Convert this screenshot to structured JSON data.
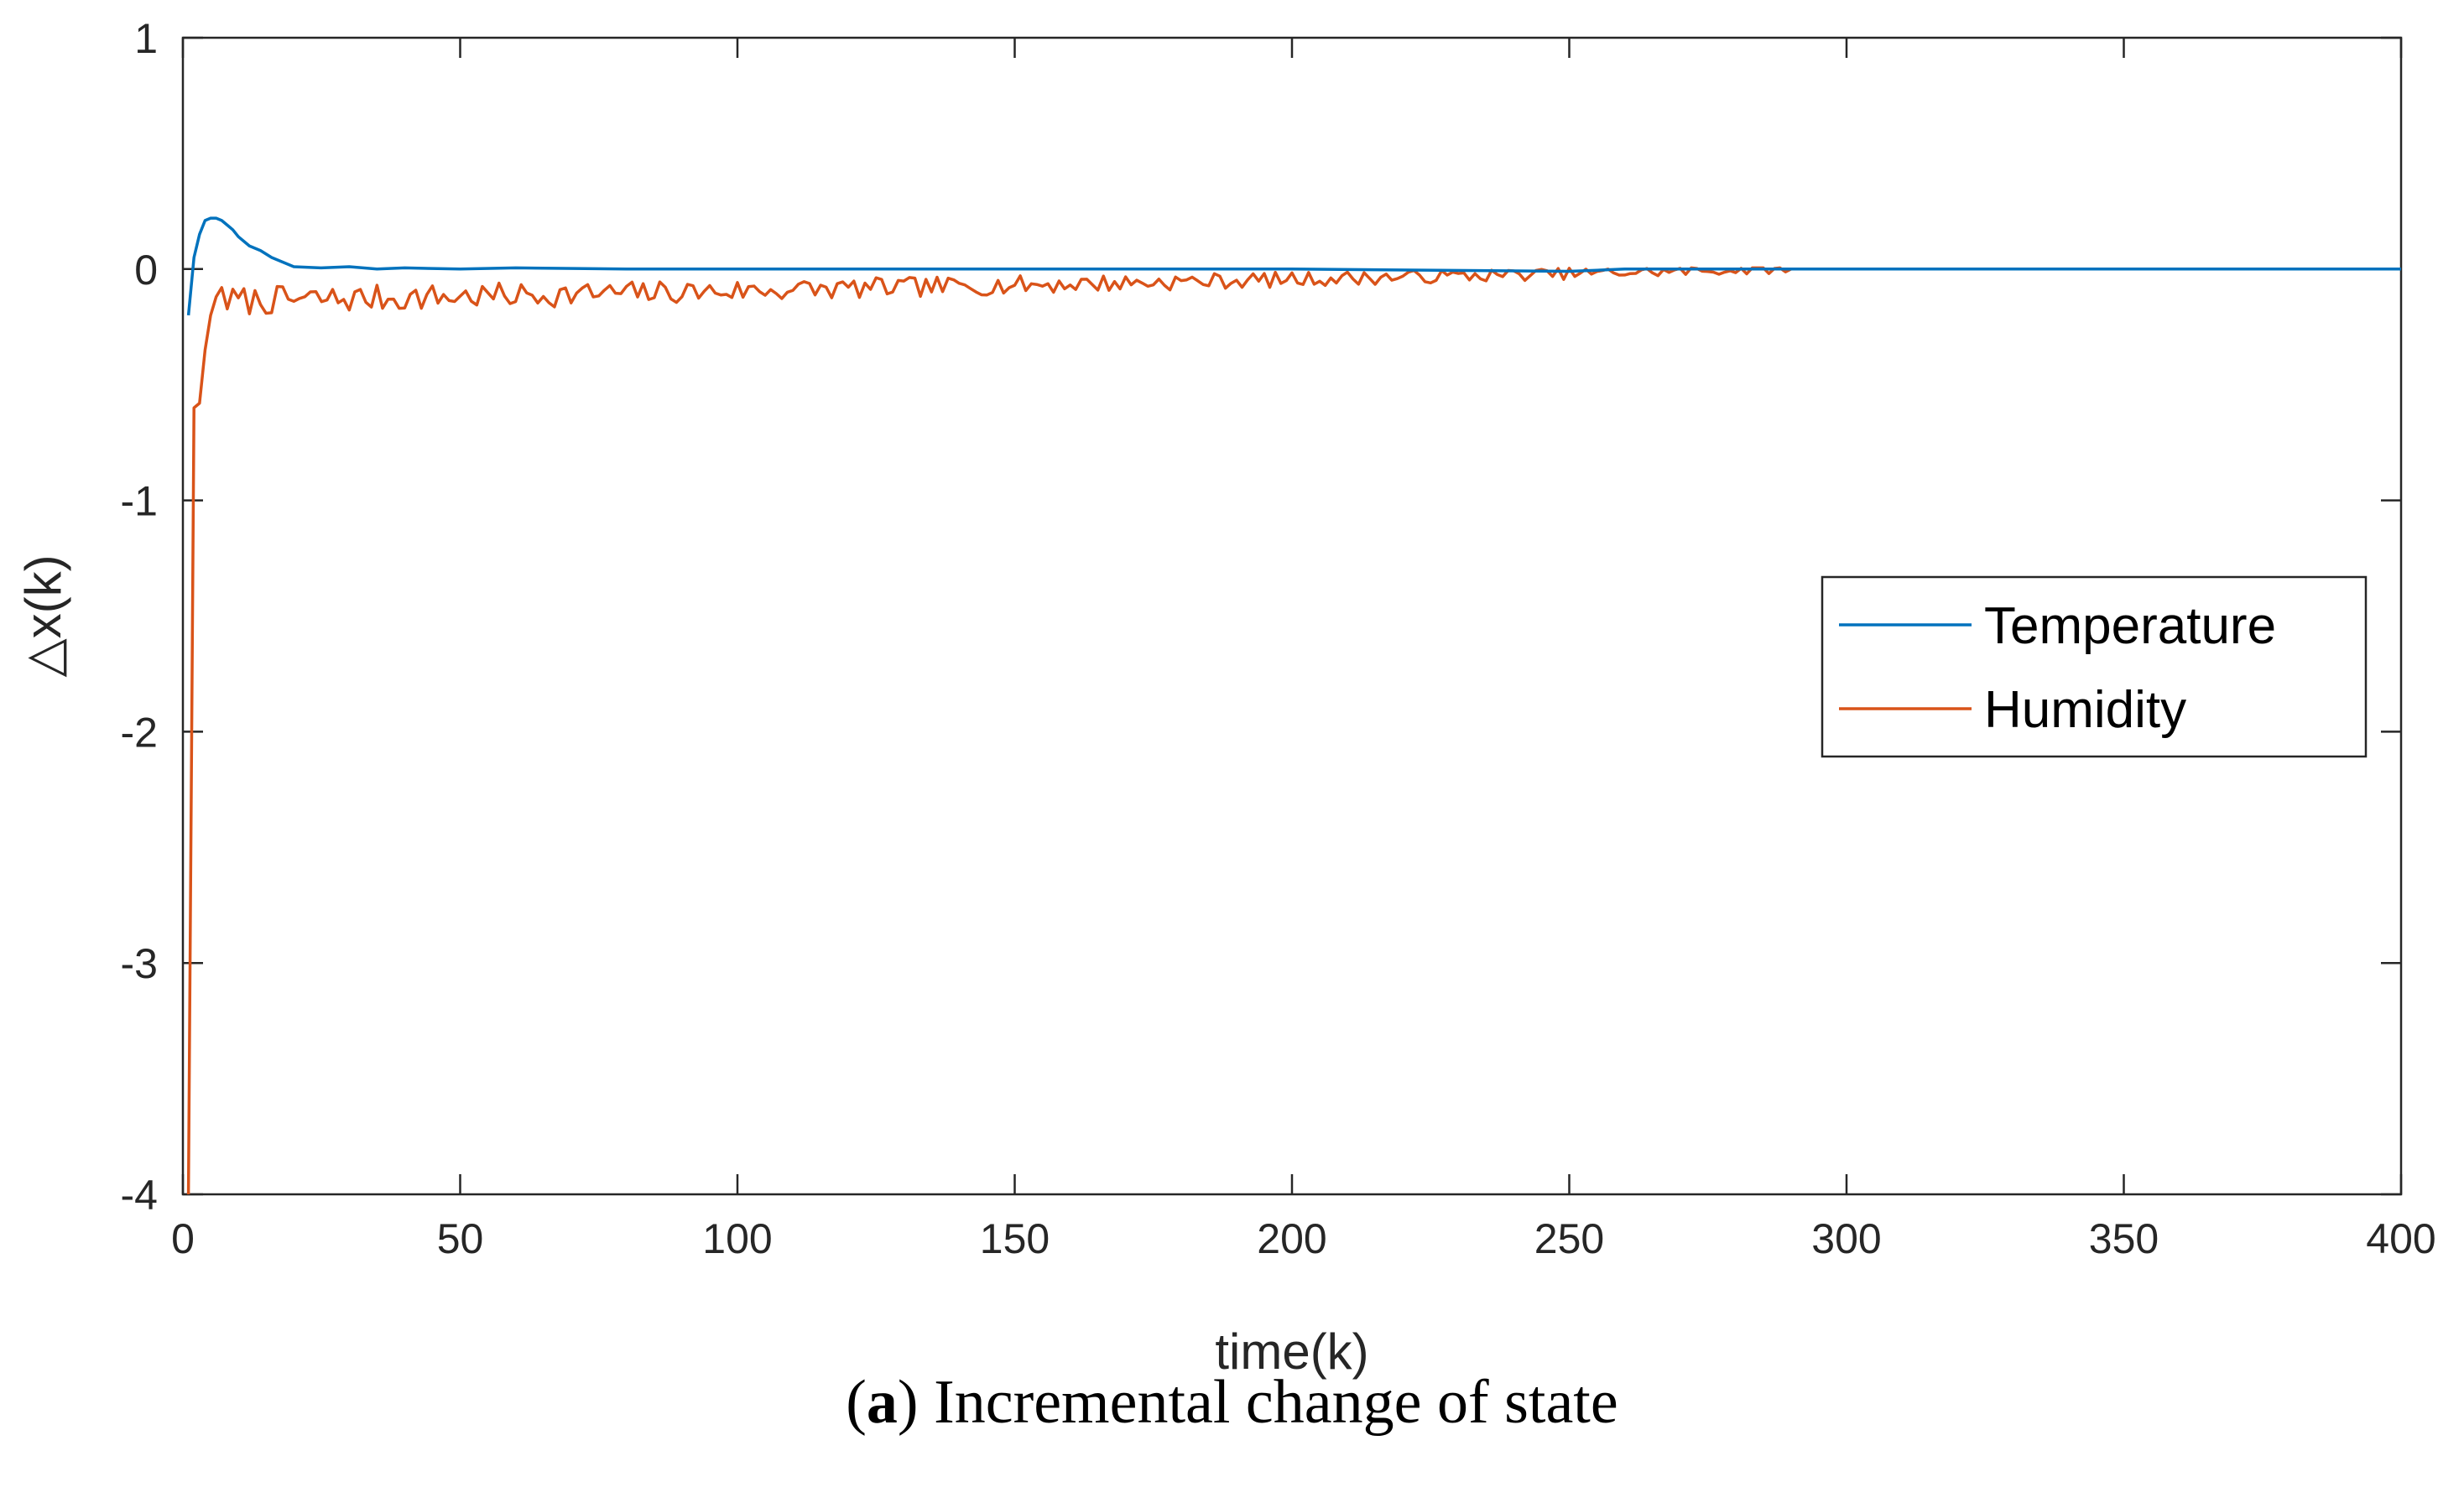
{
  "chart_data": {
    "type": "line",
    "title": "",
    "xlabel": "time(k)",
    "ylabel": "△x(k)",
    "xlim": [
      0,
      400
    ],
    "ylim": [
      -4,
      1
    ],
    "xticks": [
      0,
      50,
      100,
      150,
      200,
      250,
      300,
      350,
      400
    ],
    "yticks": [
      -4,
      -3,
      -2,
      -1,
      0,
      1
    ],
    "grid": false,
    "legend_position": "right",
    "series": [
      {
        "name": "Temperature",
        "color": "#0072BD",
        "x": [
          1,
          2,
          3,
          4,
          5,
          6,
          7,
          8,
          9,
          10,
          12,
          14,
          16,
          18,
          20,
          25,
          30,
          35,
          40,
          50,
          60,
          80,
          100,
          150,
          200,
          250,
          260,
          300,
          400
        ],
        "y": [
          -0.2,
          0.05,
          0.15,
          0.21,
          0.22,
          0.22,
          0.21,
          0.19,
          0.17,
          0.14,
          0.1,
          0.08,
          0.05,
          0.03,
          0.01,
          0.005,
          0.01,
          0.0,
          0.005,
          0.0,
          0.005,
          0.0,
          0.0,
          0.0,
          0.0,
          -0.01,
          0.0,
          0.0,
          0.0
        ]
      },
      {
        "name": "Humidity",
        "color": "#D95319",
        "generator": "noisy_decay",
        "start": [
          1,
          -4.0
        ],
        "initial": [
          [
            1,
            -4.0
          ],
          [
            2,
            -0.6
          ],
          [
            3,
            -0.58
          ],
          [
            4,
            -0.35
          ],
          [
            5,
            -0.2
          ],
          [
            6,
            -0.12
          ],
          [
            7,
            -0.08
          ]
        ],
        "base_offset": -0.14,
        "decay_end": 290,
        "noise_amp": 0.045,
        "seed": 7,
        "end": 400
      }
    ]
  },
  "caption": {
    "label": "a",
    "text": " Incremental change of state"
  }
}
